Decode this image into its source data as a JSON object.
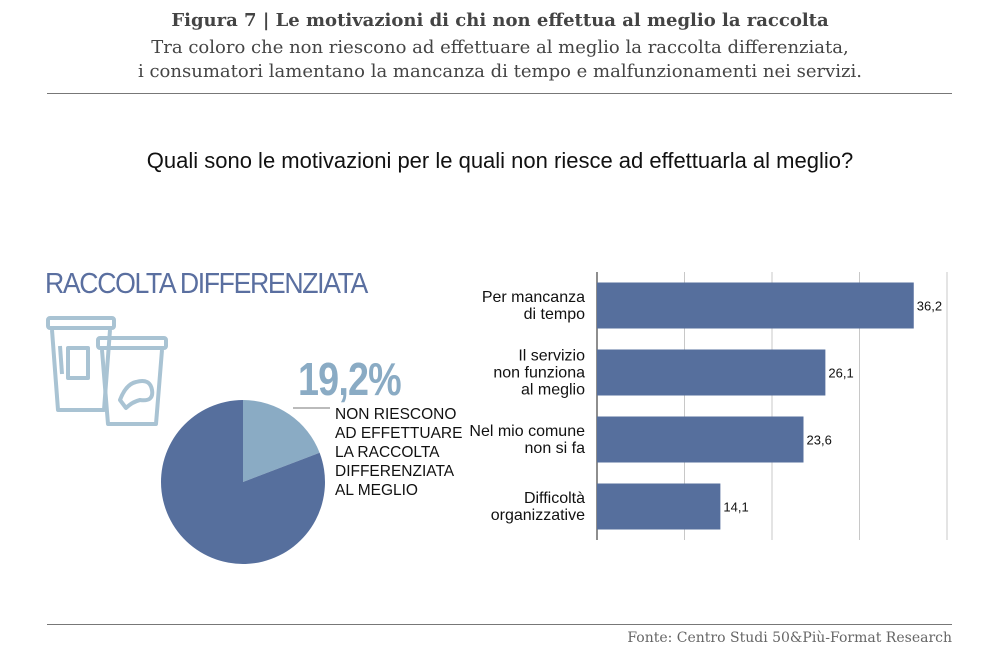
{
  "header": {
    "title": "Figura 7 | Le motivazioni di chi non effettua al meglio la raccolta",
    "subtitle_line1": "Tra coloro che non riescono ad effettuare al meglio la raccolta differenziata,",
    "subtitle_line2": "i consumatori lamentano la mancanza di tempo e malfunzionamenti nei servizi."
  },
  "question": "Quali sono le motivazioni per le quali non riesce ad effettuarla al meglio?",
  "infographic": {
    "section_title": "RACCOLTA DIFFERENZIATA",
    "percent_label": "19,2%",
    "description_lines": [
      "NON RIESCONO",
      "AD EFFETTUARE",
      "LA RACCOLTA",
      "DIFFERENZIATA",
      "AL MEGLIO"
    ],
    "icon": "recycling-bins-icon"
  },
  "source": "Fonte: Centro Studi 50&Più-Format Research",
  "colors": {
    "bar": "#566f9d",
    "pie_main": "#566f9d",
    "pie_highlight": "#8aabc4",
    "section_title": "#5a6fa0"
  },
  "chart_data": [
    {
      "type": "pie",
      "slices": [
        {
          "value": 19.2,
          "color": "#8aabc4"
        },
        {
          "value": 80.8,
          "color": "#566f9d"
        }
      ]
    },
    {
      "type": "bar",
      "orientation": "horizontal",
      "categories": [
        [
          "Per mancanza",
          "di tempo"
        ],
        [
          "Il servizio",
          "non funziona",
          "al meglio"
        ],
        [
          "Nel mio comune",
          "non si fa"
        ],
        [
          "Difficoltà",
          "organizzative"
        ]
      ],
      "values": [
        36.2,
        26.1,
        23.6,
        14.1
      ],
      "value_labels": [
        "36,2",
        "26,1",
        "23,6",
        "14,1"
      ],
      "xlim": [
        0,
        40
      ],
      "grid": true
    }
  ]
}
